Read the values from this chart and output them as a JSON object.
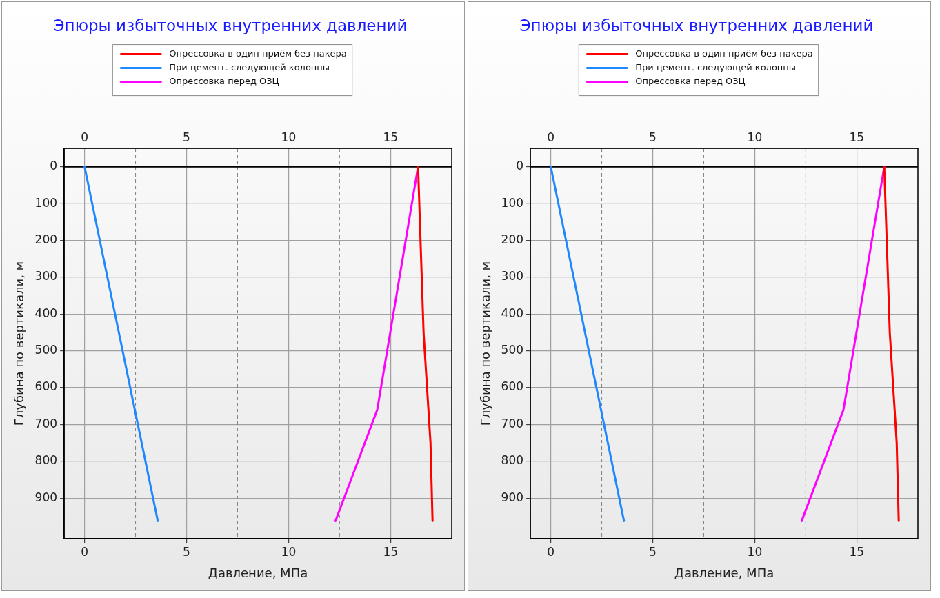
{
  "chart_data": [
    {
      "type": "line",
      "title": "Эпюры избыточных внутренних давлений",
      "xlabel": "Давление, МПа",
      "ylabel": "Глубина по вертикали, м",
      "legend": "top",
      "marker": "none",
      "line_style": "solid",
      "grid": true,
      "xlim": [
        -1,
        18
      ],
      "xticks": [
        0,
        5,
        10,
        15
      ],
      "x2lim": [
        -1,
        18
      ],
      "x2ticks": [
        0,
        5,
        10,
        15
      ],
      "ylim": [
        1010,
        -50
      ],
      "yticks": [
        0,
        100,
        200,
        300,
        400,
        500,
        600,
        700,
        800,
        900
      ],
      "ref_lines": [
        {
          "axis": "x",
          "value": 2.5,
          "color": "#808080",
          "line_style": "dashed"
        },
        {
          "axis": "x",
          "value": 7.5,
          "color": "#808080",
          "line_style": "dashed"
        },
        {
          "axis": "x",
          "value": 12.5,
          "color": "#808080",
          "line_style": "dashed"
        },
        {
          "axis": "y",
          "value": 0,
          "color": "#000000",
          "line_style": "solid"
        }
      ],
      "series": [
        {
          "name": "Опрессовка в один приём без пакера",
          "color": "#ff0000",
          "x": [
            16.35,
            16.62,
            16.96,
            17.06
          ],
          "values": [
            0,
            450,
            750,
            962
          ]
        },
        {
          "name": "При цемент. следующей колонны",
          "color": "#1e88ff",
          "x": [
            0,
            3.59
          ],
          "values": [
            0,
            962
          ]
        },
        {
          "name": "Опрессовка перед ОЗЦ",
          "color": "#ff00ff",
          "x": [
            16.35,
            14.35,
            12.3
          ],
          "values": [
            0,
            660,
            962
          ]
        }
      ]
    },
    {
      "type": "line",
      "title": "Эпюры избыточных внутренних давлений",
      "xlabel": "Давление, МПа",
      "ylabel": "Глубина по вертикали, м",
      "legend": "top",
      "marker": "none",
      "line_style": "solid",
      "grid": true,
      "xlim": [
        -1,
        18
      ],
      "xticks": [
        0,
        5,
        10,
        15
      ],
      "x2lim": [
        -1,
        18
      ],
      "x2ticks": [
        0,
        5,
        10,
        15
      ],
      "ylim": [
        1010,
        -50
      ],
      "yticks": [
        0,
        100,
        200,
        300,
        400,
        500,
        600,
        700,
        800,
        900
      ],
      "ref_lines": [
        {
          "axis": "x",
          "value": 2.5,
          "color": "#808080",
          "line_style": "dashed"
        },
        {
          "axis": "x",
          "value": 7.5,
          "color": "#808080",
          "line_style": "dashed"
        },
        {
          "axis": "x",
          "value": 12.5,
          "color": "#808080",
          "line_style": "dashed"
        },
        {
          "axis": "y",
          "value": 0,
          "color": "#000000",
          "line_style": "solid"
        }
      ],
      "series": [
        {
          "name": "Опрессовка в один приём без пакера",
          "color": "#ff0000",
          "x": [
            16.35,
            16.62,
            16.96,
            17.06
          ],
          "values": [
            0,
            450,
            750,
            962
          ]
        },
        {
          "name": "При цемент. следующей колонны",
          "color": "#1e88ff",
          "x": [
            0,
            3.59
          ],
          "values": [
            0,
            962
          ]
        },
        {
          "name": "Опрессовка перед ОЗЦ",
          "color": "#ff00ff",
          "x": [
            16.35,
            14.35,
            12.3
          ],
          "values": [
            0,
            660,
            962
          ]
        }
      ]
    }
  ]
}
